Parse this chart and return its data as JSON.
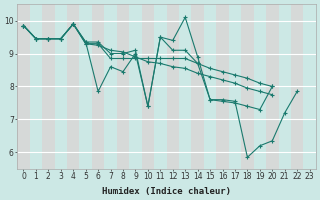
{
  "xlabel": "Humidex (Indice chaleur)",
  "background_color": "#cce8e5",
  "grid_color_h": "#ffffff",
  "grid_color_v": "#e8c8c8",
  "line_color": "#1a7a6e",
  "xlim": [
    -0.5,
    23.5
  ],
  "ylim": [
    5.5,
    10.5
  ],
  "xticks": [
    0,
    1,
    2,
    3,
    4,
    5,
    6,
    7,
    8,
    9,
    10,
    11,
    12,
    13,
    14,
    15,
    16,
    17,
    18,
    19,
    20,
    21,
    22,
    23
  ],
  "yticks": [
    6,
    7,
    8,
    9,
    10
  ],
  "series": [
    {
      "x": [
        0,
        1,
        2,
        3,
        4,
        5,
        6,
        7,
        8,
        9,
        10,
        11,
        12,
        13,
        14,
        15,
        16,
        17,
        18,
        19,
        20,
        21,
        22
      ],
      "y": [
        9.85,
        9.45,
        9.45,
        9.45,
        9.9,
        9.35,
        7.85,
        8.6,
        8.45,
        9.0,
        7.4,
        9.5,
        9.4,
        10.1,
        8.9,
        7.6,
        7.6,
        7.55,
        5.85,
        6.2,
        6.35,
        7.2,
        7.85
      ]
    },
    {
      "x": [
        0,
        1,
        2,
        3,
        4,
        5,
        6,
        7,
        8,
        9,
        10,
        11,
        12,
        13,
        14,
        15,
        16,
        17,
        18,
        19,
        20
      ],
      "y": [
        9.85,
        9.45,
        9.45,
        9.45,
        9.9,
        9.35,
        9.35,
        9.0,
        9.0,
        9.1,
        7.4,
        9.5,
        9.1,
        9.1,
        8.7,
        7.6,
        7.55,
        7.5,
        7.4,
        7.3,
        8.0
      ]
    },
    {
      "x": [
        0,
        1,
        2,
        3,
        4,
        5,
        6,
        7,
        8,
        9,
        10,
        11,
        12,
        13,
        14,
        15,
        16,
        17,
        18,
        19,
        20
      ],
      "y": [
        9.85,
        9.45,
        9.45,
        9.45,
        9.9,
        9.3,
        9.3,
        8.85,
        8.85,
        8.85,
        8.85,
        8.85,
        8.85,
        8.85,
        8.7,
        8.55,
        8.45,
        8.35,
        8.25,
        8.1,
        8.0
      ]
    },
    {
      "x": [
        0,
        1,
        2,
        3,
        4,
        5,
        6,
        7,
        8,
        9,
        10,
        11,
        12,
        13,
        14,
        15,
        16,
        17,
        18,
        19,
        20
      ],
      "y": [
        9.85,
        9.45,
        9.45,
        9.45,
        9.9,
        9.3,
        9.25,
        9.1,
        9.05,
        8.9,
        8.75,
        8.7,
        8.6,
        8.55,
        8.4,
        8.3,
        8.2,
        8.1,
        7.95,
        7.85,
        7.75
      ]
    }
  ]
}
